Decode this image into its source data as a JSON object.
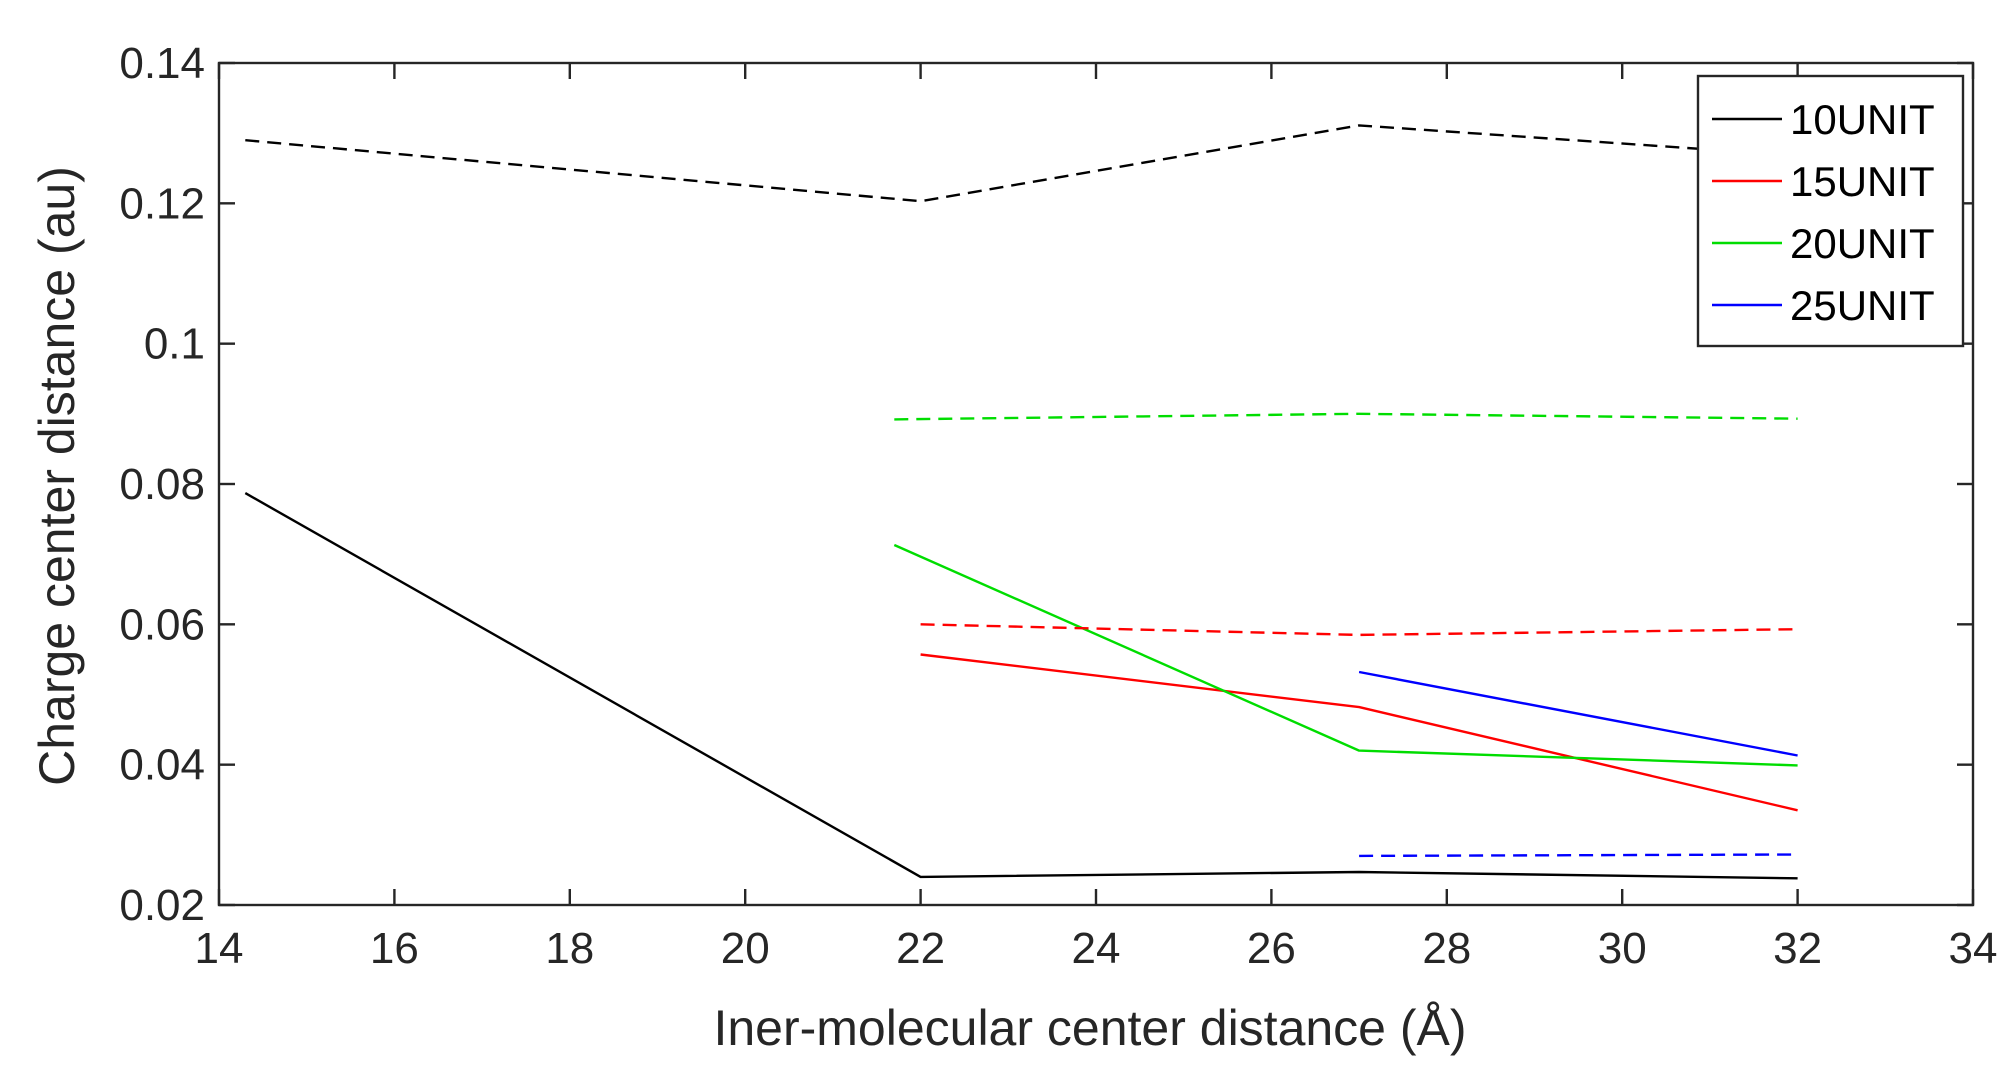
{
  "chart_data": {
    "type": "line",
    "title": "",
    "xlabel": "Iner-molecular center distance (Å)",
    "ylabel": "Charge center distance (au)",
    "xlim": [
      14,
      34
    ],
    "ylim": [
      0.02,
      0.14
    ],
    "xticks": [
      14,
      16,
      18,
      20,
      22,
      24,
      26,
      28,
      30,
      32,
      34
    ],
    "xtick_labels": [
      "14",
      "16",
      "18",
      "20",
      "22",
      "24",
      "26",
      "28",
      "30",
      "32",
      "34"
    ],
    "yticks": [
      0.02,
      0.04,
      0.06,
      0.08,
      0.1,
      0.12,
      0.14
    ],
    "ytick_labels": [
      "0.02",
      "0.04",
      "0.06",
      "0.08",
      "0.1",
      "0.12",
      "0.14"
    ],
    "grid": false,
    "legend_position": "top-right",
    "series": [
      {
        "name": "10UNIT",
        "color": "#000000",
        "style": "solid",
        "x": [
          14.3,
          22,
          27,
          32
        ],
        "y": [
          0.0787,
          0.024,
          0.0247,
          0.0238
        ]
      },
      {
        "name": "15UNIT",
        "color": "#ff0000",
        "style": "solid",
        "x": [
          22,
          27,
          32
        ],
        "y": [
          0.0557,
          0.0482,
          0.0335
        ]
      },
      {
        "name": "20UNIT",
        "color": "#00dd00",
        "style": "solid",
        "x": [
          21.7,
          27,
          32
        ],
        "y": [
          0.0713,
          0.042,
          0.0399
        ]
      },
      {
        "name": "25UNIT",
        "color": "#0000ff",
        "style": "solid",
        "x": [
          27,
          32
        ],
        "y": [
          0.0532,
          0.0413
        ]
      },
      {
        "name": "",
        "color": "#000000",
        "style": "dashed",
        "x": [
          14.3,
          22,
          27,
          32
        ],
        "y": [
          0.129,
          0.1203,
          0.1311,
          0.1268
        ]
      },
      {
        "name": "",
        "color": "#ff0000",
        "style": "dashed",
        "x": [
          22,
          27,
          32
        ],
        "y": [
          0.06,
          0.0585,
          0.0593
        ]
      },
      {
        "name": "",
        "color": "#00dd00",
        "style": "dashed",
        "x": [
          21.7,
          27,
          32
        ],
        "y": [
          0.0892,
          0.09,
          0.0893
        ]
      },
      {
        "name": "",
        "color": "#0000ff",
        "style": "dashed",
        "x": [
          27,
          32
        ],
        "y": [
          0.027,
          0.0272
        ]
      }
    ]
  }
}
